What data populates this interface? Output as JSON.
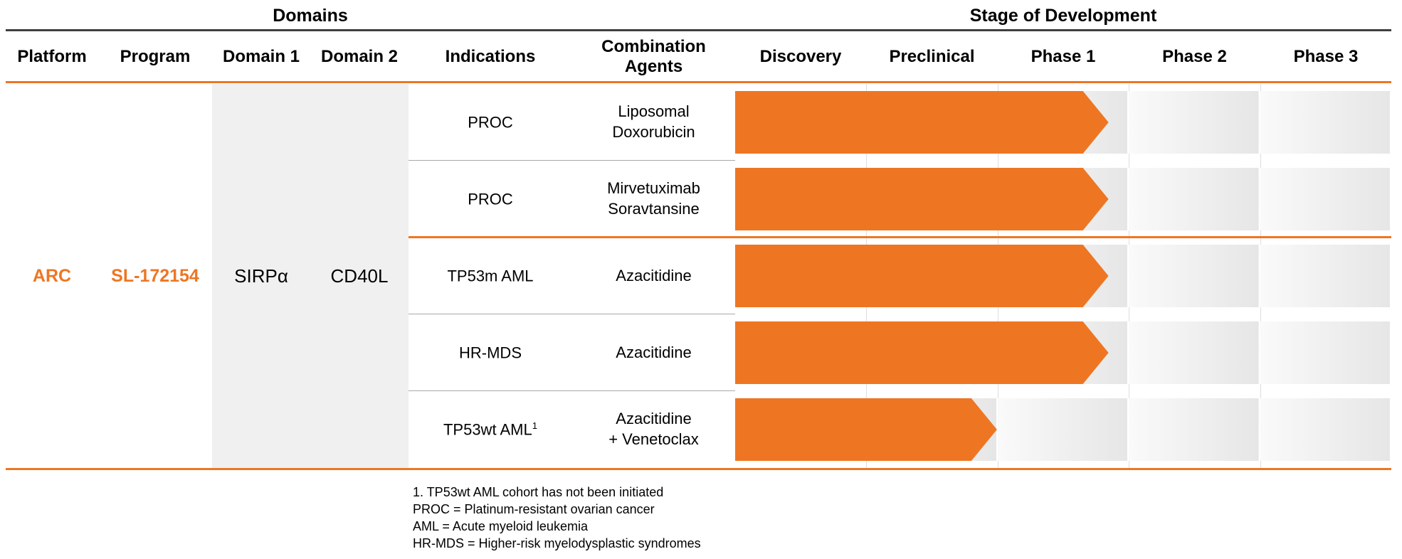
{
  "colors": {
    "accent": "#EE7623",
    "domain-bg": "#F0F0F0",
    "rule-dark": "#3F3F3F",
    "track-light": "#FAFAFA",
    "track-dark": "#E6E6E6"
  },
  "header": {
    "domains_title": "Domains",
    "stage_title": "Stage of Development"
  },
  "columns": {
    "platform": "Platform",
    "program": "Program",
    "domain1": "Domain 1",
    "domain2": "Domain 2",
    "indications": "Indications",
    "combination": "Combination\nAgents",
    "stages": [
      "Discovery",
      "Preclinical",
      "Phase 1",
      "Phase 2",
      "Phase 3"
    ]
  },
  "program": {
    "platform": "ARC",
    "name": "SL-172154",
    "domain1": "SIRPα",
    "domain2": "CD40L"
  },
  "rows": [
    {
      "indication": "PROC",
      "indication_sup": "",
      "combination": "Liposomal\nDoxorubicin",
      "progress_pct": 56.9
    },
    {
      "indication": "PROC",
      "indication_sup": "",
      "combination": "Mirvetuximab\nSoravtansine",
      "progress_pct": 56.9
    },
    {
      "indication": "TP53m AML",
      "indication_sup": "",
      "combination": "Azacitidine",
      "progress_pct": 56.9
    },
    {
      "indication": "HR-MDS",
      "indication_sup": "",
      "combination": "Azacitidine",
      "progress_pct": 56.9
    },
    {
      "indication": "TP53wt AML",
      "indication_sup": "1",
      "combination": "Azacitidine\n+ Venetoclax",
      "progress_pct": 39.9
    }
  ],
  "footnotes": [
    "1. TP53wt AML cohort has not been initiated",
    "PROC = Platinum-resistant ovarian cancer",
    "AML = Acute myeloid leukemia",
    "HR-MDS = Higher-risk myelodysplastic syndromes"
  ],
  "chart_data": {
    "type": "bar",
    "title": "Stage of Development",
    "stages": [
      "Discovery",
      "Preclinical",
      "Phase 1",
      "Phase 2",
      "Phase 3"
    ],
    "categories": [
      "PROC — Liposomal Doxorubicin",
      "PROC — Mirvetuximab Soravtansine",
      "TP53m AML — Azacitidine",
      "HR-MDS — Azacitidine",
      "TP53wt AML — Azacitidine + Venetoclax"
    ],
    "values_stage_units": [
      2.85,
      2.85,
      2.85,
      2.85,
      2.0
    ],
    "xlim": [
      0,
      5
    ],
    "note": "Arrow tip position in stage units: Discovery=0–1, Preclinical=1–2, Phase 1=2–3, Phase 2=3–4, Phase 3=4–5"
  }
}
